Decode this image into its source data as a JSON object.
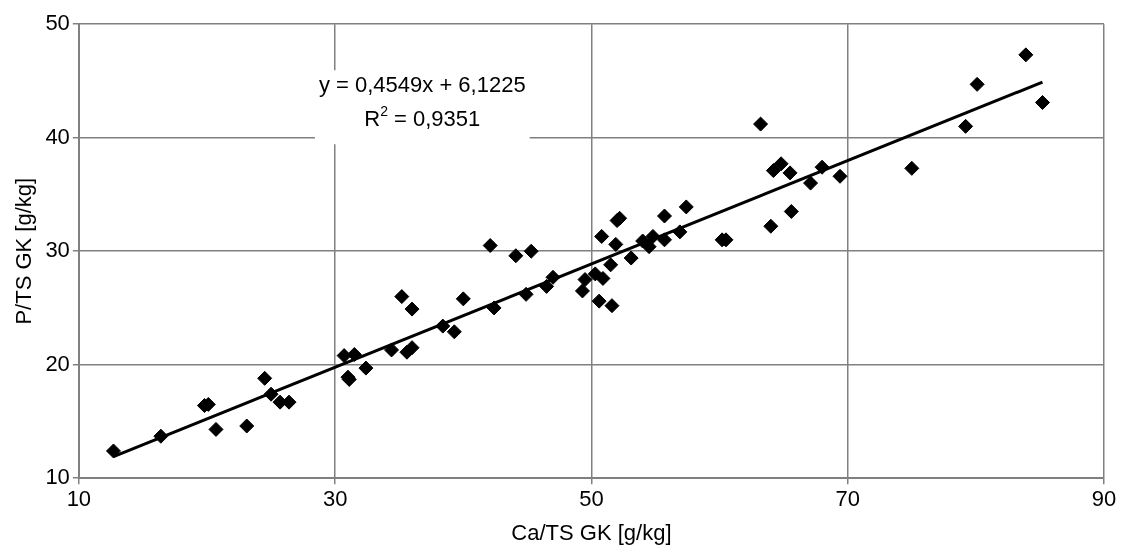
{
  "chart_data": {
    "type": "scatter",
    "xlabel": "Ca/TS GK [g/kg]",
    "ylabel": "P/TS GK [g/kg]",
    "xlim": [
      10,
      90
    ],
    "xticks": [
      10,
      30,
      50,
      70,
      90
    ],
    "ylim": [
      10,
      50
    ],
    "yticks": [
      10,
      20,
      30,
      40,
      50
    ],
    "grid": true,
    "legend": false,
    "marker": "diamond",
    "annotations": [
      "y = 0,4549x + 6,1225",
      "R$^{2}$ = 0,9351"
    ],
    "series": [
      {
        "type": "scatter",
        "color": "#000000",
        "x": [
          12.7,
          16.4,
          19.8,
          20.1,
          20.7,
          23.1,
          24.5,
          25.0,
          25.7,
          26.4,
          30.7,
          31.5,
          31.0,
          31.1,
          32.4,
          34.4,
          35.6,
          36.0,
          35.2,
          36.0,
          38.4,
          39.3,
          40.0,
          42.1,
          42.4,
          44.1,
          45.3,
          44.9,
          46.5,
          47.0,
          49.3,
          49.5,
          50.3,
          50.9,
          50.6,
          51.6,
          50.8,
          51.5,
          51.9,
          52.0,
          52.2,
          53.1,
          54.0,
          54.5,
          54.8,
          55.7,
          55.7,
          56.9,
          57.4,
          60.2,
          60.5,
          63.2,
          64.2,
          64.8,
          65.5,
          67.1,
          68.0,
          69.4,
          64.0,
          65.6,
          75.0,
          79.2,
          80.1,
          83.9,
          85.2
        ],
        "values": [
          12.4,
          13.7,
          16.4,
          16.5,
          14.3,
          14.6,
          18.8,
          17.4,
          16.7,
          16.7,
          20.8,
          20.9,
          18.9,
          18.7,
          19.7,
          21.3,
          21.1,
          21.5,
          26.0,
          24.9,
          23.4,
          22.9,
          25.8,
          30.5,
          25.0,
          29.6,
          30.0,
          26.2,
          26.9,
          27.7,
          26.5,
          27.5,
          28.0,
          27.6,
          25.6,
          25.2,
          31.3,
          28.8,
          30.6,
          32.7,
          32.9,
          29.4,
          30.9,
          30.4,
          31.3,
          31.0,
          33.1,
          31.7,
          33.9,
          31.0,
          31.0,
          41.2,
          37.1,
          37.7,
          36.9,
          36.0,
          37.4,
          36.6,
          32.2,
          33.5,
          37.3,
          41.0,
          44.7,
          47.3,
          43.1
        ]
      },
      {
        "type": "line",
        "color": "#000000",
        "marker": "none",
        "line_style": "solid",
        "x": [
          12.7,
          85.2
        ],
        "values": [
          11.9,
          44.9
        ]
      }
    ]
  }
}
